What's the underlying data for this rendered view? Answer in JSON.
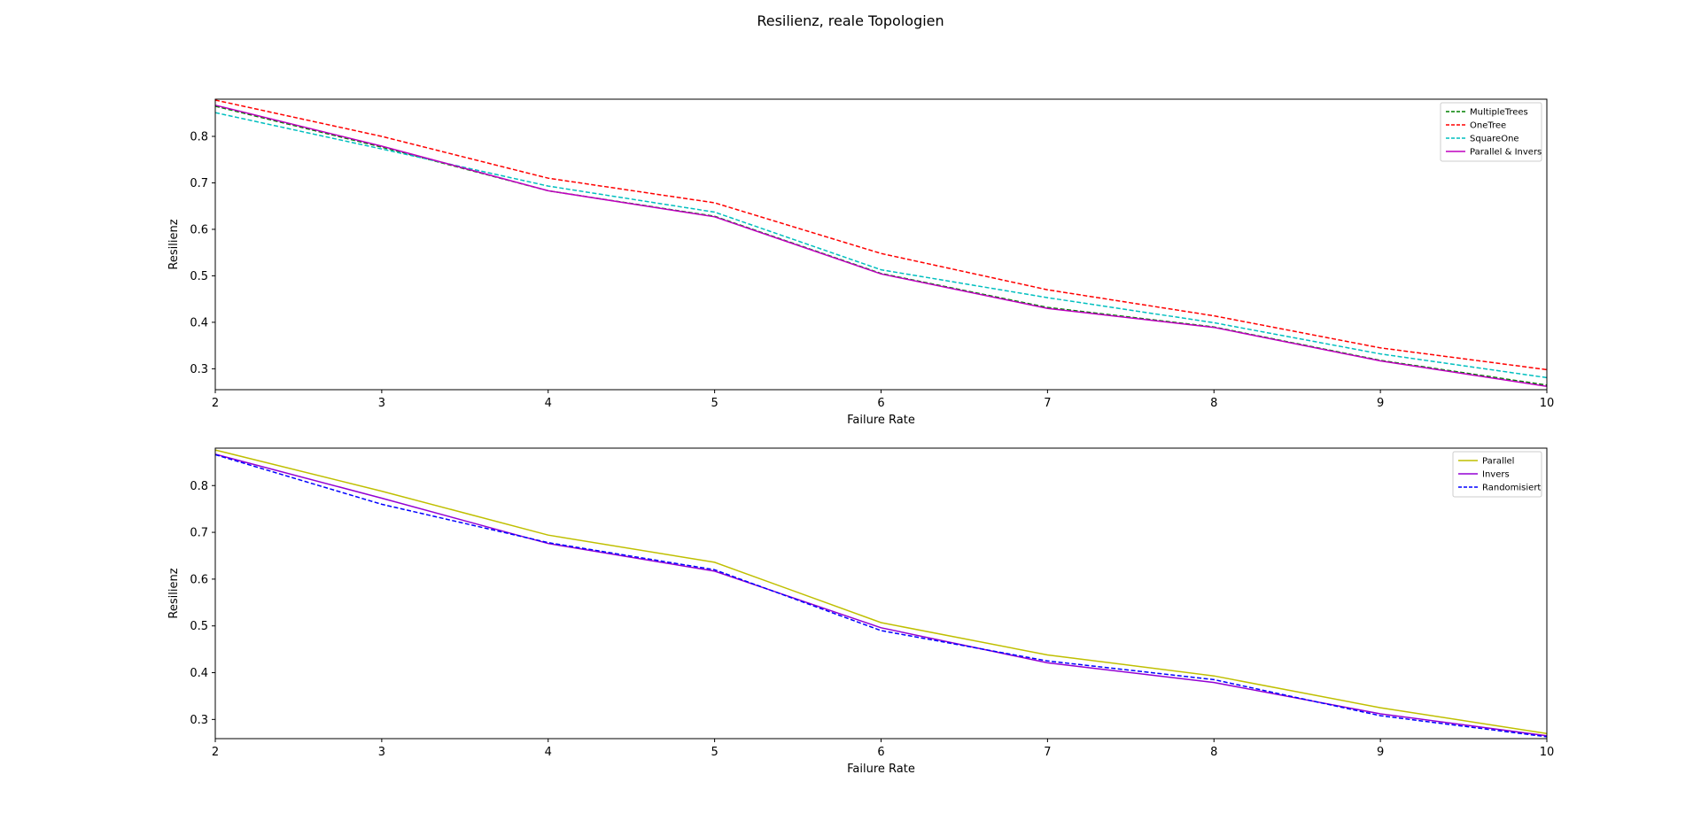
{
  "suptitle": "Resilienz, reale Topologien",
  "chart_data": [
    {
      "type": "line",
      "xlabel": "Failure Rate",
      "ylabel": "Resilienz",
      "xlim": [
        2,
        10
      ],
      "ylim": [
        0.255,
        0.88
      ],
      "xticks": [
        2,
        3,
        4,
        5,
        6,
        7,
        8,
        9,
        10
      ],
      "yticks": [
        0.3,
        0.4,
        0.5,
        0.6,
        0.7,
        0.8
      ],
      "legend_position": "top-right",
      "grid": false,
      "x": [
        2,
        3,
        4,
        5,
        6,
        7,
        8,
        9,
        10
      ],
      "series": [
        {
          "name": "MultipleTrees",
          "color": "#008000",
          "dash": "dashed",
          "values": [
            0.865,
            0.777,
            0.683,
            0.628,
            0.505,
            0.432,
            0.39,
            0.318,
            0.265
          ]
        },
        {
          "name": "OneTree",
          "color": "#ff0000",
          "dash": "dashed",
          "values": [
            0.878,
            0.8,
            0.71,
            0.657,
            0.548,
            0.47,
            0.414,
            0.345,
            0.298
          ]
        },
        {
          "name": "SquareOne",
          "color": "#00bfbf",
          "dash": "dashed",
          "values": [
            0.851,
            0.773,
            0.693,
            0.637,
            0.513,
            0.453,
            0.399,
            0.332,
            0.281
          ]
        },
        {
          "name": "Parallel & Invers",
          "color": "#bf00bf",
          "dash": "solid",
          "values": [
            0.867,
            0.779,
            0.683,
            0.627,
            0.504,
            0.43,
            0.389,
            0.317,
            0.262
          ]
        }
      ]
    },
    {
      "type": "line",
      "xlabel": "Failure Rate",
      "ylabel": "Resilienz",
      "xlim": [
        2,
        10
      ],
      "ylim": [
        0.259,
        0.88
      ],
      "xticks": [
        2,
        3,
        4,
        5,
        6,
        7,
        8,
        9,
        10
      ],
      "yticks": [
        0.3,
        0.4,
        0.5,
        0.6,
        0.7,
        0.8
      ],
      "legend_position": "top-right",
      "grid": false,
      "x": [
        2,
        3,
        4,
        5,
        6,
        7,
        8,
        9,
        10
      ],
      "series": [
        {
          "name": "Parallel",
          "color": "#bfbf00",
          "dash": "solid",
          "values": [
            0.876,
            0.788,
            0.694,
            0.636,
            0.507,
            0.438,
            0.393,
            0.325,
            0.27
          ]
        },
        {
          "name": "Invers",
          "color": "#9400d3",
          "dash": "solid",
          "values": [
            0.867,
            0.773,
            0.676,
            0.617,
            0.496,
            0.421,
            0.379,
            0.312,
            0.265
          ]
        },
        {
          "name": "Randomisiert",
          "color": "#0000ff",
          "dash": "dashed",
          "values": [
            0.866,
            0.76,
            0.678,
            0.62,
            0.49,
            0.425,
            0.385,
            0.308,
            0.263
          ]
        }
      ]
    }
  ]
}
